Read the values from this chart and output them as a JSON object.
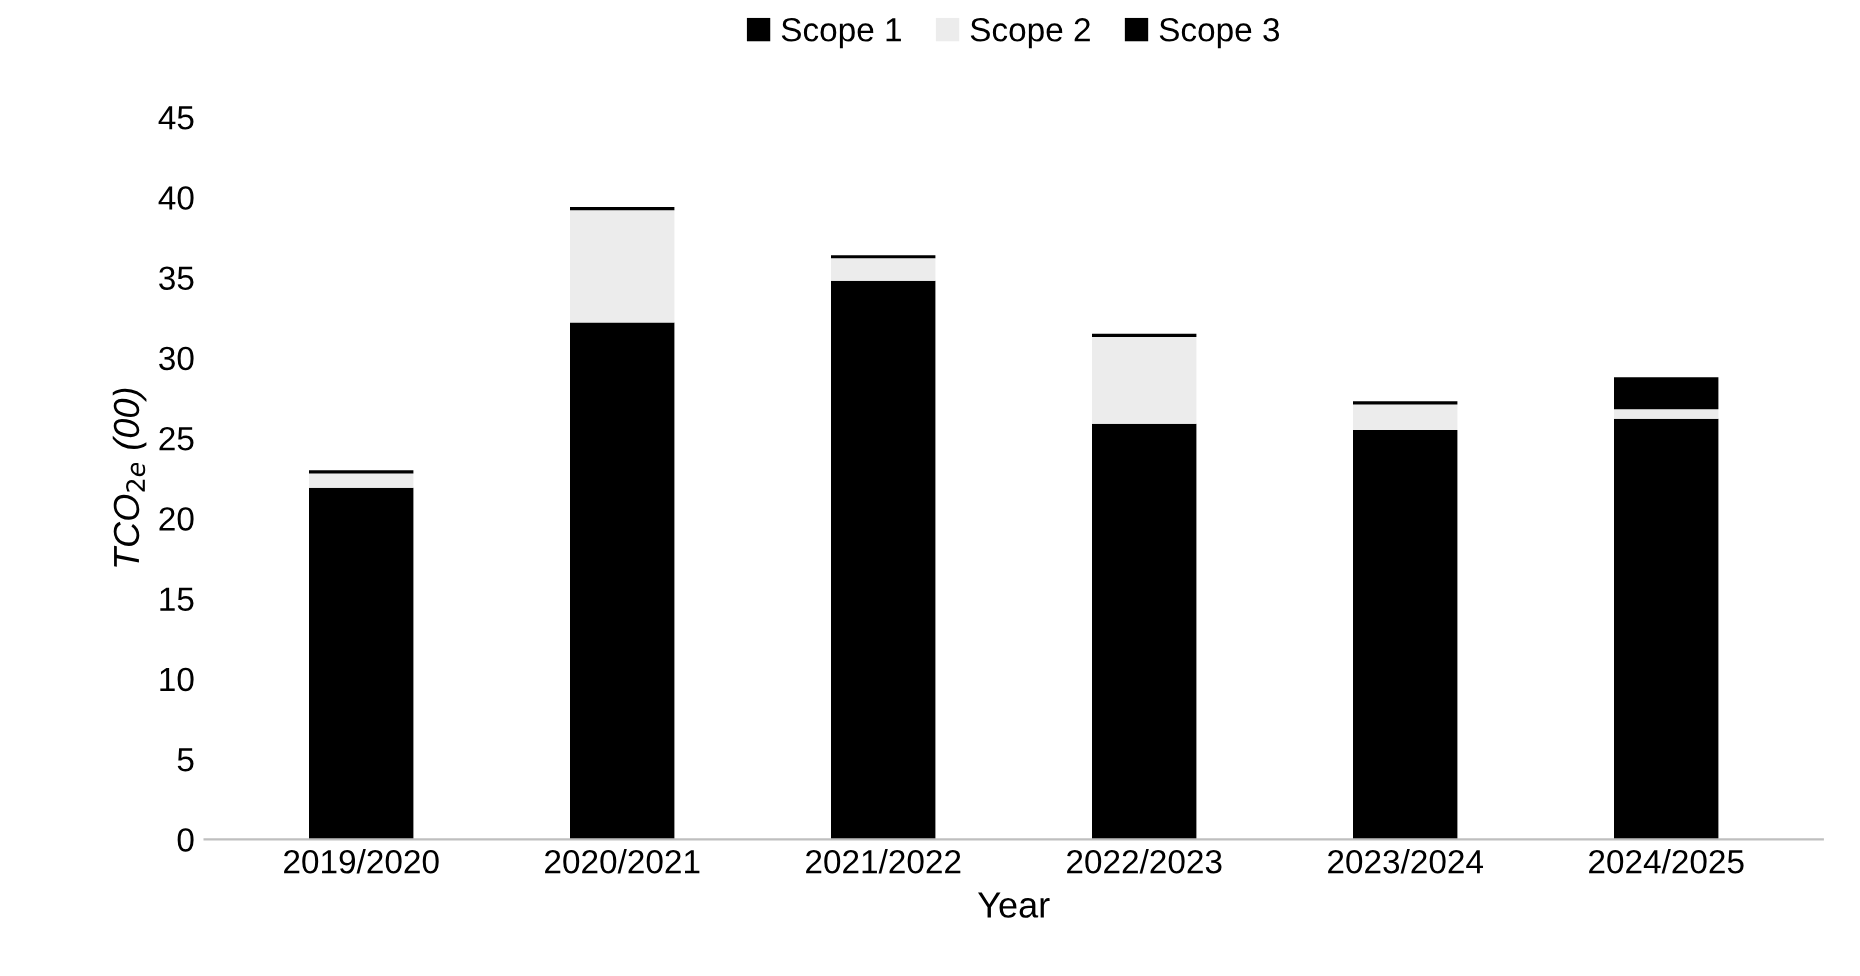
{
  "chart_data": {
    "type": "bar",
    "stacked": true,
    "xlabel": "Year",
    "ylabel": "TCO$_{2e}$ (00)",
    "categories": [
      "2019/2020",
      "2020/2021",
      "2021/2022",
      "2022/2023",
      "2023/2024",
      "2024/2025"
    ],
    "series": [
      {
        "name": "Scope 1",
        "color": "#000000",
        "values": [
          21.9,
          32.2,
          34.8,
          25.9,
          25.5,
          26.2
        ]
      },
      {
        "name": "Scope 2",
        "color": "#ececec",
        "values": [
          0.9,
          7.0,
          1.4,
          5.4,
          1.6,
          0.6
        ]
      },
      {
        "name": "Scope 3",
        "color": "#000000",
        "values": [
          0.2,
          0.2,
          0.2,
          0.2,
          0.2,
          2.0
        ]
      }
    ],
    "ylim": [
      0,
      45
    ],
    "yticks": [
      0,
      5,
      10,
      15,
      20,
      25,
      30,
      35,
      40,
      45
    ],
    "grid": false,
    "legend": "top"
  }
}
